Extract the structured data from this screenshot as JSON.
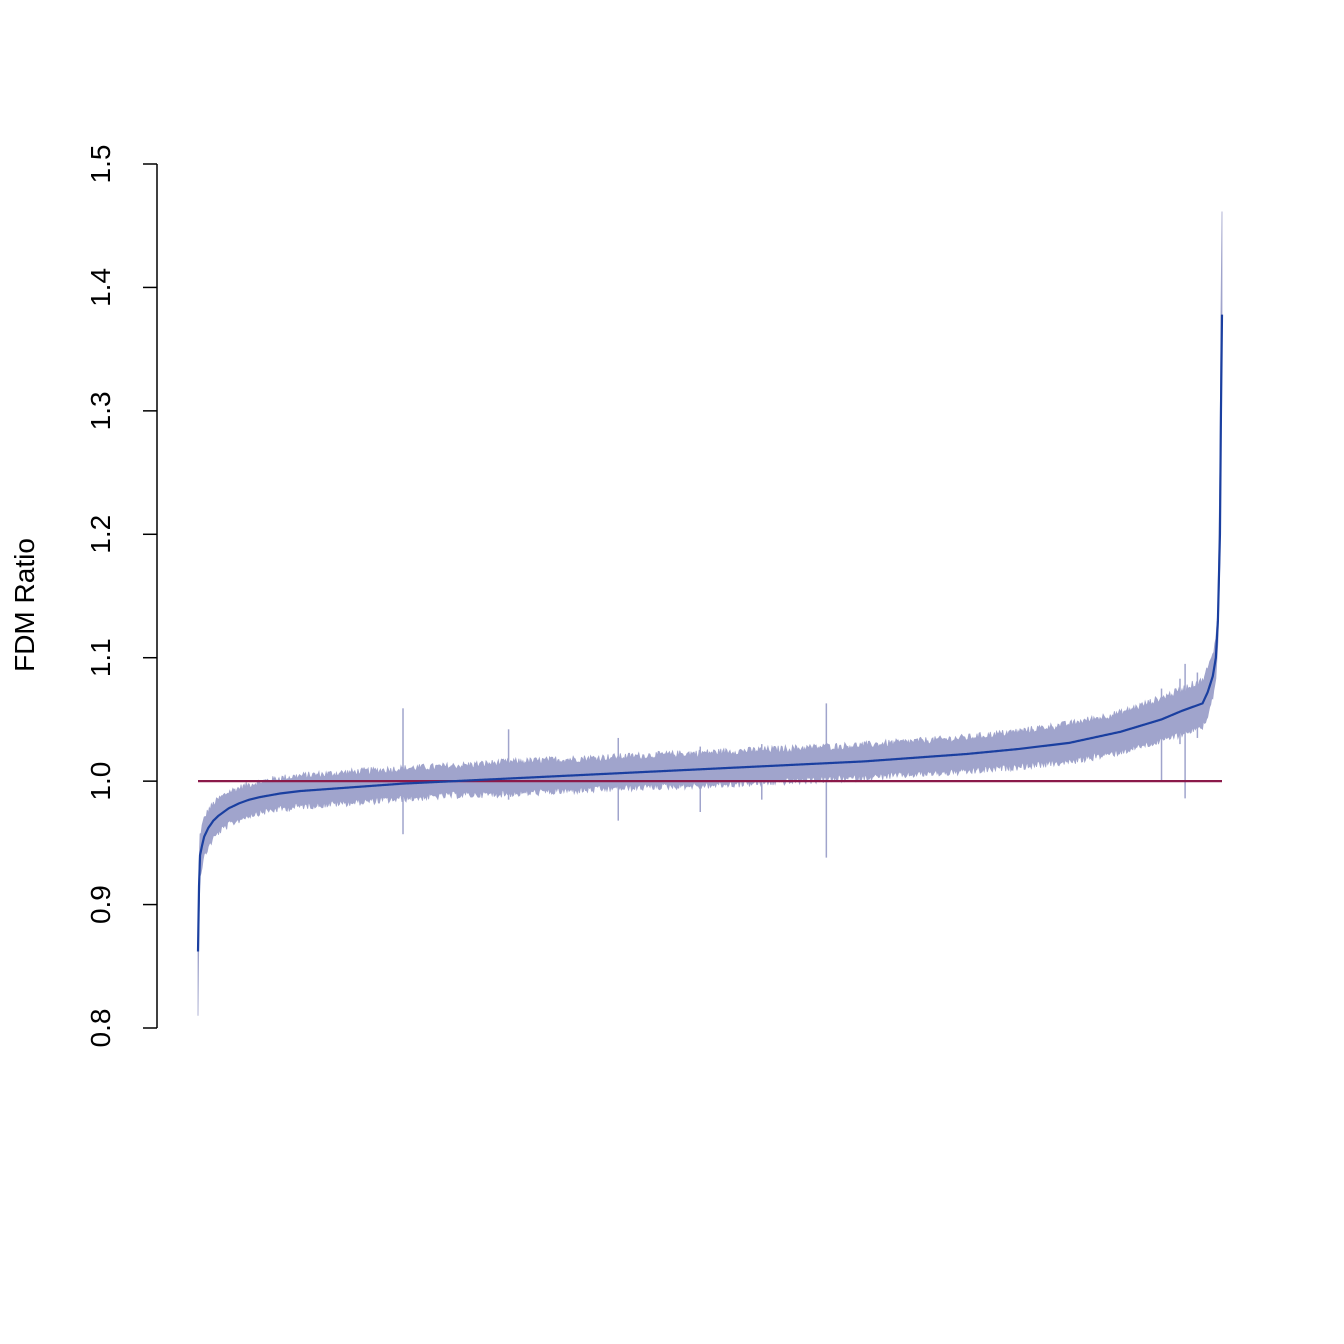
{
  "chart_data": {
    "type": "line",
    "title": "",
    "xlabel": "",
    "ylabel": "FDM Ratio",
    "ylim": [
      0.8,
      1.5
    ],
    "y_ticks": [
      0.8,
      0.9,
      1.0,
      1.1,
      1.2,
      1.3,
      1.4,
      1.5
    ],
    "x_axis_shown": false,
    "grid": false,
    "legend": "none",
    "n_points": 1000,
    "reference_line": {
      "y": 1.0,
      "color": "#8B1A4A"
    },
    "series": [
      {
        "role": "median",
        "color": "#1A3FA0",
        "x": [
          0,
          1,
          2,
          4,
          6,
          10,
          15,
          20,
          30,
          40,
          50,
          60,
          80,
          100,
          150,
          200,
          250,
          300,
          350,
          400,
          450,
          500,
          550,
          600,
          650,
          700,
          750,
          800,
          850,
          900,
          920,
          940,
          960,
          970,
          980,
          985,
          990,
          993,
          995,
          997,
          998,
          999
        ],
        "values": [
          0.862,
          0.915,
          0.94,
          0.948,
          0.955,
          0.962,
          0.968,
          0.972,
          0.978,
          0.982,
          0.985,
          0.987,
          0.99,
          0.992,
          0.995,
          0.998,
          1.0,
          1.002,
          1.004,
          1.006,
          1.008,
          1.01,
          1.012,
          1.014,
          1.016,
          1.019,
          1.022,
          1.026,
          1.031,
          1.04,
          1.045,
          1.05,
          1.057,
          1.06,
          1.063,
          1.072,
          1.085,
          1.1,
          1.13,
          1.2,
          1.3,
          1.378
        ]
      },
      {
        "role": "band-upper",
        "color": "#A0A4CC",
        "x": [
          0,
          1,
          2,
          4,
          6,
          10,
          15,
          20,
          30,
          40,
          50,
          60,
          80,
          100,
          150,
          200,
          250,
          300,
          350,
          400,
          450,
          500,
          550,
          600,
          650,
          700,
          750,
          800,
          850,
          900,
          920,
          940,
          960,
          970,
          980,
          985,
          990,
          993,
          995,
          997,
          998,
          999
        ],
        "values": [
          0.875,
          0.93,
          0.955,
          0.962,
          0.968,
          0.975,
          0.98,
          0.984,
          0.99,
          0.993,
          0.996,
          0.998,
          1.001,
          1.003,
          1.006,
          1.009,
          1.011,
          1.014,
          1.016,
          1.018,
          1.02,
          1.022,
          1.024,
          1.026,
          1.028,
          1.031,
          1.034,
          1.039,
          1.045,
          1.054,
          1.06,
          1.066,
          1.073,
          1.077,
          1.08,
          1.09,
          1.1,
          1.115,
          1.14,
          1.25,
          1.38,
          1.46
        ]
      },
      {
        "role": "band-lower",
        "color": "#A0A4CC",
        "x": [
          0,
          1,
          2,
          4,
          6,
          10,
          15,
          20,
          30,
          40,
          50,
          60,
          80,
          100,
          150,
          200,
          250,
          300,
          350,
          400,
          450,
          500,
          550,
          600,
          650,
          700,
          750,
          800,
          850,
          900,
          920,
          940,
          960,
          970,
          980,
          985,
          990,
          993,
          995,
          997,
          998,
          999
        ],
        "values": [
          0.81,
          0.895,
          0.925,
          0.933,
          0.94,
          0.948,
          0.955,
          0.96,
          0.966,
          0.97,
          0.974,
          0.976,
          0.979,
          0.981,
          0.984,
          0.987,
          0.99,
          0.991,
          0.993,
          0.995,
          0.997,
          0.998,
          1.0,
          1.002,
          1.004,
          1.007,
          1.009,
          1.013,
          1.017,
          1.025,
          1.03,
          1.034,
          1.04,
          1.043,
          1.046,
          1.054,
          1.07,
          1.085,
          1.115,
          1.18,
          1.28,
          1.375
        ]
      }
    ],
    "spikes": [
      {
        "x": 200,
        "low": 0.957,
        "high": 1.059
      },
      {
        "x": 303,
        "low": 0.985,
        "high": 1.042
      },
      {
        "x": 410,
        "low": 0.968,
        "high": 1.035
      },
      {
        "x": 490,
        "low": 0.975,
        "high": 1.028
      },
      {
        "x": 550,
        "low": 0.985,
        "high": 1.03
      },
      {
        "x": 613,
        "low": 0.938,
        "high": 1.063
      },
      {
        "x": 940,
        "low": 1.0,
        "high": 1.075
      },
      {
        "x": 958,
        "low": 1.03,
        "high": 1.083
      },
      {
        "x": 963,
        "low": 0.986,
        "high": 1.095
      },
      {
        "x": 975,
        "low": 1.035,
        "high": 1.088
      }
    ]
  }
}
